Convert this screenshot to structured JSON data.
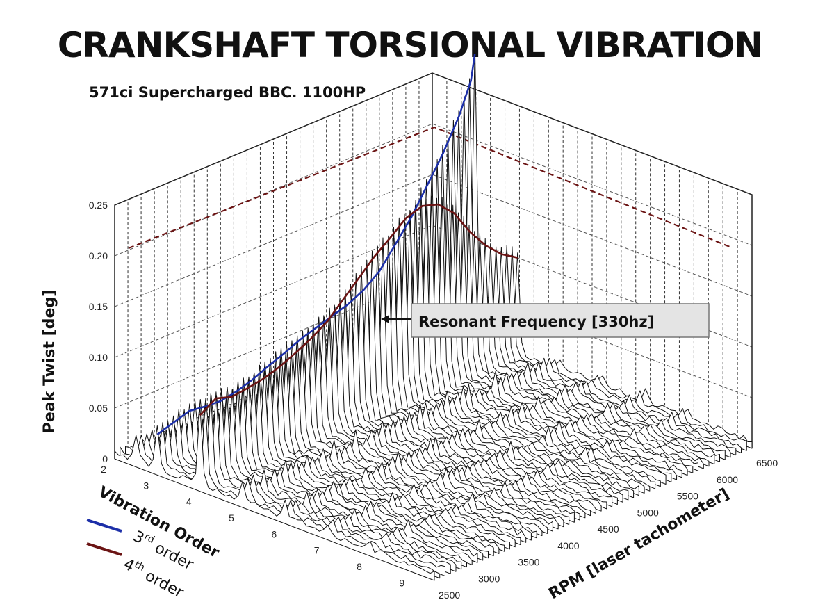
{
  "chart_data": {
    "type": "line",
    "title": "CRANKSHAFT TORSIONAL VIBRATION",
    "subtitle": "571ci Supercharged BBC.  1100HP",
    "zlabel": "Peak Twist [deg]",
    "xlabel": "Vibration Order",
    "ylabel": "RPM [laser tachometer]",
    "zticks": [
      "0",
      "0.05",
      "0.10",
      "0.15",
      "0.20",
      "0.25"
    ],
    "xticks": [
      "2",
      "3",
      "4",
      "5",
      "6",
      "7",
      "8",
      "9"
    ],
    "yticks": [
      "2500",
      "3000",
      "3500",
      "4000",
      "4500",
      "5000",
      "5500",
      "6000",
      "6500"
    ],
    "zlim": [
      0,
      0.25
    ],
    "xlim": [
      2,
      9.5
    ],
    "ylim": [
      2500,
      6500
    ],
    "grid": true,
    "annotation": {
      "text": "Resonant Frequency [330hz]",
      "order": 3,
      "rpm": 6600,
      "value": 0.14
    },
    "legend": {
      "placement": "bottom-left",
      "entries": [
        {
          "label_main": "3",
          "label_sup": "rd",
          "label_rest": " order",
          "color": "#1c2fa8"
        },
        {
          "label_main": "4",
          "label_sup": "th",
          "label_rest": " order",
          "color": "#6b1414"
        }
      ]
    },
    "series": [
      {
        "color": "#1c2fa8",
        "order": 3,
        "rpm": [
          2500,
          2700,
          2900,
          3100,
          3300,
          3500,
          3700,
          3900,
          4100,
          4300,
          4500,
          4700,
          4900,
          5100,
          5300,
          5500,
          5700,
          5900,
          6100,
          6300,
          6450,
          6500
        ],
        "values": [
          0.04,
          0.045,
          0.05,
          0.048,
          0.047,
          0.05,
          0.055,
          0.062,
          0.068,
          0.075,
          0.08,
          0.085,
          0.09,
          0.098,
          0.11,
          0.13,
          0.15,
          0.175,
          0.2,
          0.23,
          0.26,
          0.285
        ]
      },
      {
        "color": "#6b1414",
        "order": 4,
        "rpm": [
          2500,
          2700,
          2900,
          3100,
          3300,
          3500,
          3700,
          3900,
          4100,
          4300,
          4500,
          4700,
          4900,
          5100,
          5300,
          5500,
          5700,
          5900,
          6100,
          6300,
          6500
        ],
        "values": [
          0.075,
          0.085,
          0.08,
          0.082,
          0.085,
          0.09,
          0.097,
          0.105,
          0.115,
          0.13,
          0.145,
          0.16,
          0.172,
          0.185,
          0.19,
          0.185,
          0.17,
          0.145,
          0.125,
          0.11,
          0.1
        ]
      }
    ]
  }
}
